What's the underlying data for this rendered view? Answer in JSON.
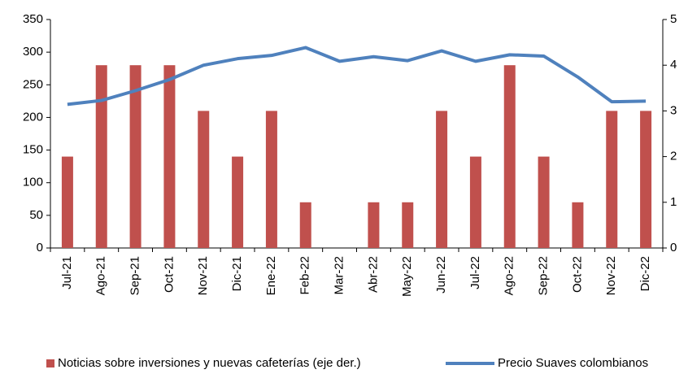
{
  "chart_data": {
    "type": "bar-line",
    "categories": [
      "Jul-21",
      "Ago-21",
      "Sep-21",
      "Oct-21",
      "Nov-21",
      "Dic-21",
      "Ene-22",
      "Feb-22",
      "Mar-22",
      "Abr-22",
      "May-22",
      "Jun-22",
      "Jul-22",
      "Ago-22",
      "Sep-22",
      "Oct-22",
      "Nov-22",
      "Dic-22"
    ],
    "series": [
      {
        "name": "Noticias sobre inversiones y nuevas cafeterías (eje der.)",
        "type": "bar",
        "axis": "y2",
        "color": "#c0504d",
        "values": [
          2,
          4,
          4,
          4,
          3,
          2,
          3,
          1,
          0,
          1,
          1,
          3,
          2,
          4,
          2,
          1,
          3,
          3
        ]
      },
      {
        "name": "Precio Suaves colombianos",
        "type": "line",
        "axis": "y",
        "color": "#4f81bd",
        "values": [
          220,
          226,
          241,
          258,
          280,
          290,
          295,
          307,
          286,
          293,
          287,
          302,
          286,
          296,
          294,
          262,
          224,
          225
        ]
      }
    ],
    "ylim": [
      0,
      350
    ],
    "yticks": [
      0,
      50,
      100,
      150,
      200,
      250,
      300,
      350
    ],
    "y2lim": [
      0,
      5
    ],
    "y2ticks": [
      0,
      1,
      2,
      3,
      4,
      5
    ],
    "grid": false,
    "legend": "bottom"
  }
}
